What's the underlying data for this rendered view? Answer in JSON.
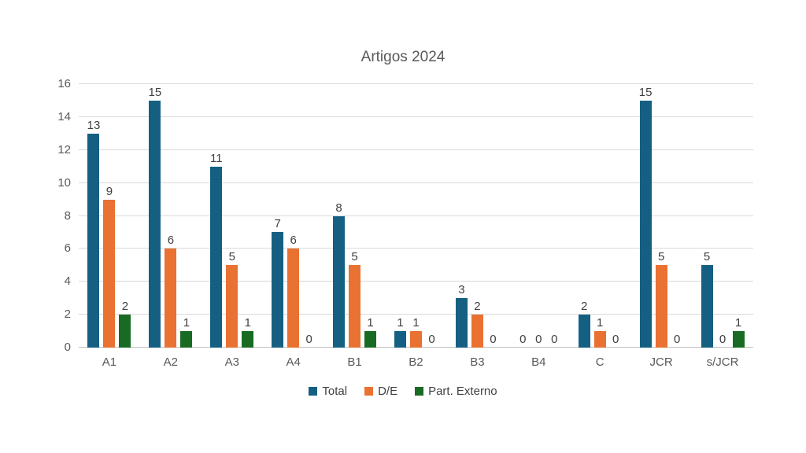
{
  "chart_data": {
    "type": "bar",
    "title": "Artigos 2024",
    "categories": [
      "A1",
      "A2",
      "A3",
      "A4",
      "B1",
      "B2",
      "B3",
      "B4",
      "C",
      "JCR",
      "s/JCR"
    ],
    "series": [
      {
        "name": "Total",
        "color": "#156082",
        "values": [
          13,
          15,
          11,
          7,
          8,
          1,
          3,
          0,
          2,
          15,
          5
        ]
      },
      {
        "name": "D/E",
        "color": "#E97132",
        "values": [
          9,
          6,
          5,
          6,
          5,
          1,
          2,
          0,
          1,
          5,
          0
        ]
      },
      {
        "name": "Part. Externo",
        "color": "#196B24",
        "values": [
          2,
          1,
          1,
          0,
          1,
          0,
          0,
          0,
          0,
          0,
          1
        ]
      }
    ],
    "xlabel": "",
    "ylabel": "",
    "ylim": [
      0,
      16
    ],
    "ytick_step": 2,
    "yticks": [
      0,
      2,
      4,
      6,
      8,
      10,
      12,
      14,
      16
    ],
    "grid": "horizontal",
    "gridline_color": "#d9d9d9",
    "axis_line_color": "#bfbfbf",
    "data_labels": true,
    "legend_position": "bottom",
    "title_color": "#595959",
    "axis_text_color": "#595959",
    "data_label_color": "#404040",
    "background_color": "#ffffff"
  }
}
